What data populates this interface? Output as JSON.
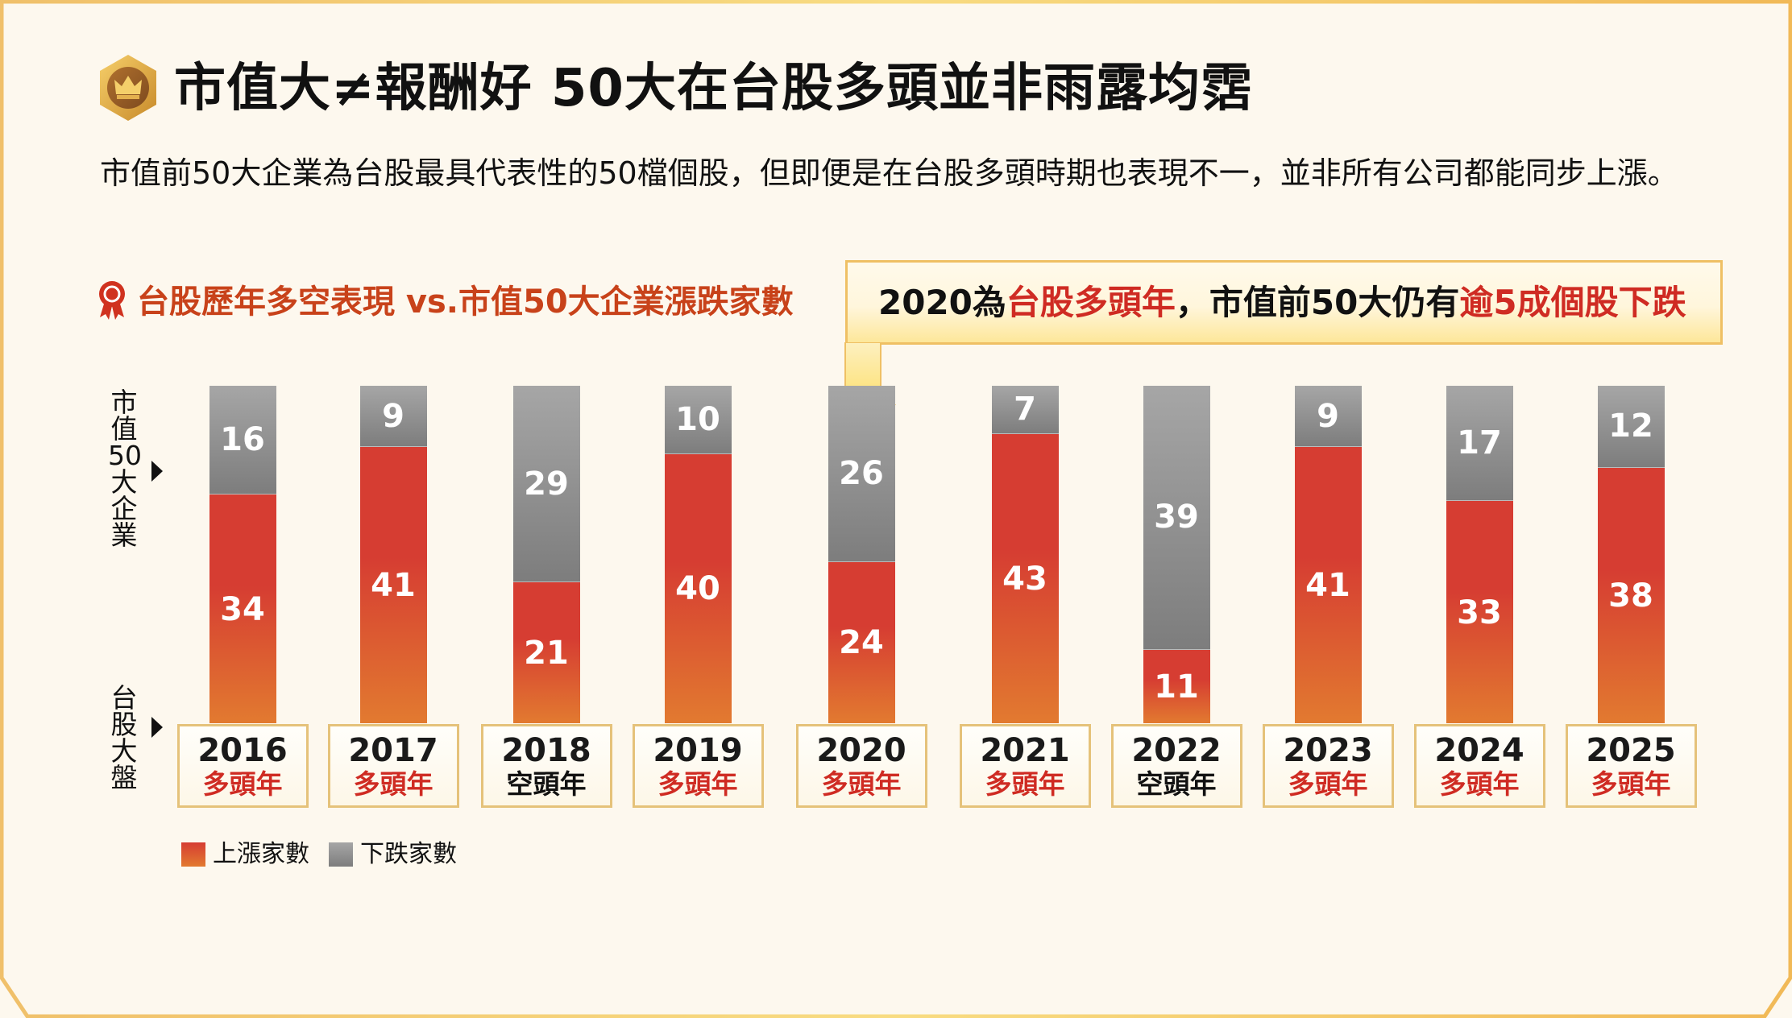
{
  "header": {
    "title": "市值大≠報酬好  50大在台股多頭並非雨露均霑",
    "title_icon": "crown-hexagon-badge-icon",
    "description": "市值前50大企業為台股最具代表性的50檔個股，但即便是在台股多頭時期也表現不一，並非所有公司都能同步上漲。"
  },
  "section": {
    "icon": "award-ribbon-icon",
    "title": "台股歷年多空表現 vs.市值50大企業漲跌家數"
  },
  "callout": {
    "parts": [
      {
        "text": "2020為",
        "highlight": false
      },
      {
        "text": "台股多頭年",
        "highlight": true
      },
      {
        "text": "，市值前50大仍有",
        "highlight": false
      },
      {
        "text": "逾5成個股下跌",
        "highlight": true
      }
    ],
    "target_year": "2020",
    "arrow_icon": "down-arrow-icon"
  },
  "axis_labels": {
    "top": [
      "市",
      "值",
      "50",
      "大",
      "企",
      "業"
    ],
    "bottom": [
      "台",
      "股",
      "大",
      "盤"
    ]
  },
  "colors": {
    "up": "#d63d32",
    "up_bottom": "#e27a30",
    "down": "#8c8c8c",
    "bull_text": "#cf2b23",
    "bear_text": "#111111",
    "accent": "#c8421a",
    "gold": "#efc064"
  },
  "legend": {
    "up_label": "上漲家數",
    "down_label": "下跌家數"
  },
  "chart_data": {
    "type": "bar",
    "stacked": true,
    "title": "台股歷年多空表現 vs.市值50大企業漲跌家數",
    "xlabel": "台股大盤",
    "ylabel": "市值50大企業",
    "ylim": [
      0,
      50
    ],
    "grid": false,
    "legend_position": "bottom-left",
    "categories": [
      "2016",
      "2017",
      "2018",
      "2019",
      "2020",
      "2021",
      "2022",
      "2023",
      "2024",
      "2025"
    ],
    "market": [
      "多頭年",
      "多頭年",
      "空頭年",
      "多頭年",
      "多頭年",
      "多頭年",
      "空頭年",
      "多頭年",
      "多頭年",
      "多頭年"
    ],
    "series": [
      {
        "name": "上漲家數",
        "values": [
          34,
          41,
          21,
          40,
          24,
          43,
          11,
          41,
          33,
          38
        ]
      },
      {
        "name": "下跌家數",
        "values": [
          16,
          9,
          29,
          10,
          26,
          7,
          39,
          9,
          17,
          12
        ]
      }
    ],
    "annotation": "2020為台股多頭年，市值前50大仍有逾5成個股下跌"
  }
}
